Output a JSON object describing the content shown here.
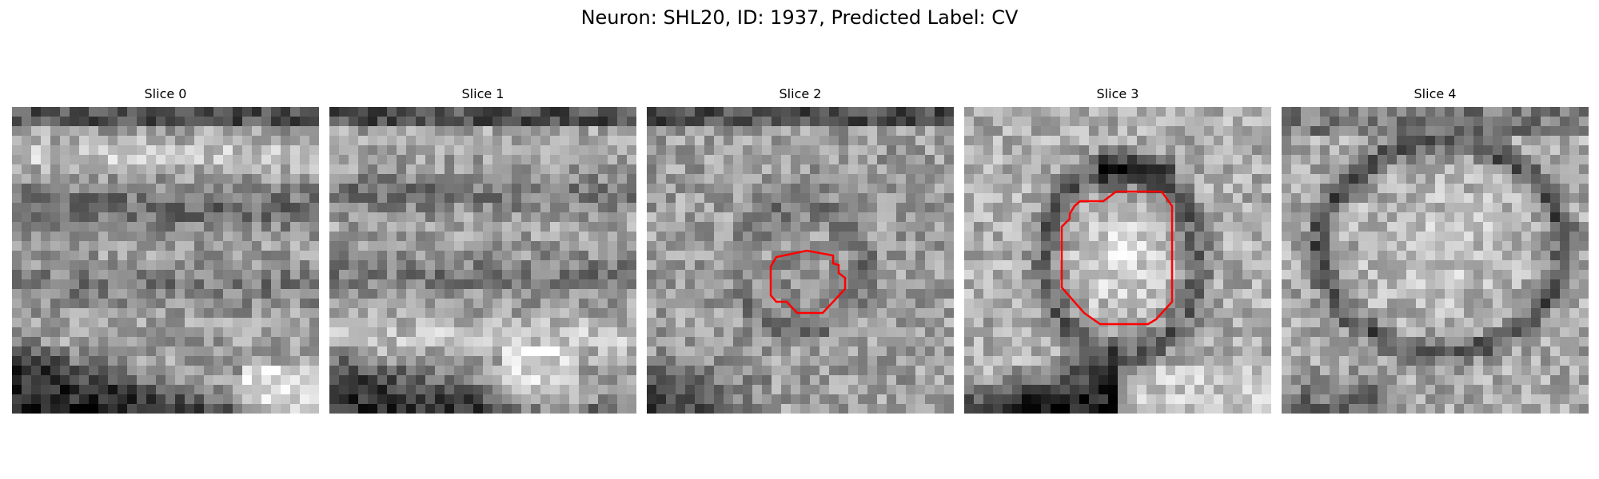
{
  "figure": {
    "title": "Neuron: SHL20, ID: 1937, Predicted Label: CV"
  },
  "panels": [
    {
      "title": "Slice 0",
      "pattern": "0",
      "outline": false
    },
    {
      "title": "Slice 1",
      "pattern": "1",
      "outline": false
    },
    {
      "title": "Slice 2",
      "pattern": "2",
      "outline": true
    },
    {
      "title": "Slice 3",
      "pattern": "3",
      "outline": true
    },
    {
      "title": "Slice 4",
      "pattern": "4",
      "outline": false
    }
  ],
  "colors": {
    "outline": "#ff0000"
  }
}
